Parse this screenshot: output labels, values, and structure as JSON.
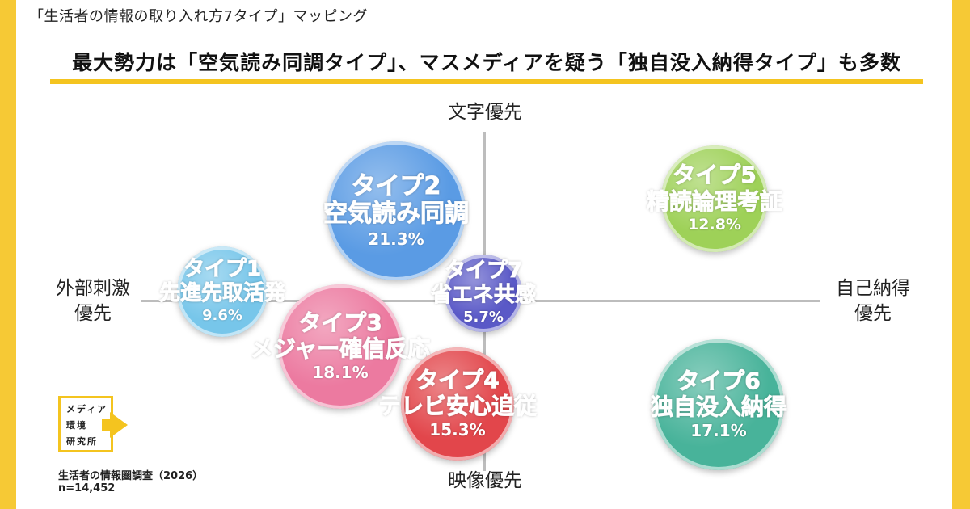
{
  "header": {
    "top_label": "「生活者の情報の取り入れ方7タイプ」マッピング",
    "headline": "最大勢力は「空気読み同調タイプ」、マスメディアを疑う「独自没入納得タイプ」も多数"
  },
  "axes": {
    "top": "文字優先",
    "bottom": "映像優先",
    "left_line1": "外部刺激",
    "left_line2": "優先",
    "right_line1": "自己納得",
    "right_line2": "優先"
  },
  "bubbles": [
    {
      "type": "タイプ2",
      "name": "空気読み同調",
      "percent": "21.3%",
      "share": 21.3,
      "color": "#5a9be4"
    },
    {
      "type": "タイプ5",
      "name": "精読論理考証",
      "percent": "12.8%",
      "share": 12.8,
      "color": "#9ed158"
    },
    {
      "type": "タイプ1",
      "name": "先進先取活発",
      "percent": "9.6%",
      "share": 9.6,
      "color": "#77c6ea"
    },
    {
      "type": "タイプ3",
      "name": "メジャー確信反応",
      "percent": "18.1%",
      "share": 18.1,
      "color": "#ec7aa0"
    },
    {
      "type": "タイプ7",
      "name": "省エネ共感",
      "percent": "5.7%",
      "share": 5.7,
      "color": "#5a59c7"
    },
    {
      "type": "タイプ4",
      "name": "テレビ安心追従",
      "percent": "15.3%",
      "share": 15.3,
      "color": "#e2464b"
    },
    {
      "type": "タイプ6",
      "name": "独自没入納得",
      "percent": "17.1%",
      "share": 17.1,
      "color": "#48b39a"
    }
  ],
  "logo": {
    "line1": "メディア",
    "line2": "環境",
    "line3": "研究所"
  },
  "source": {
    "survey": "生活者の情報圏調査（2026）",
    "sample": "n=14,452"
  },
  "colors": {
    "frame": "#f6c935",
    "underline": "#f4c41f",
    "axis": "#bdbdbd"
  }
}
